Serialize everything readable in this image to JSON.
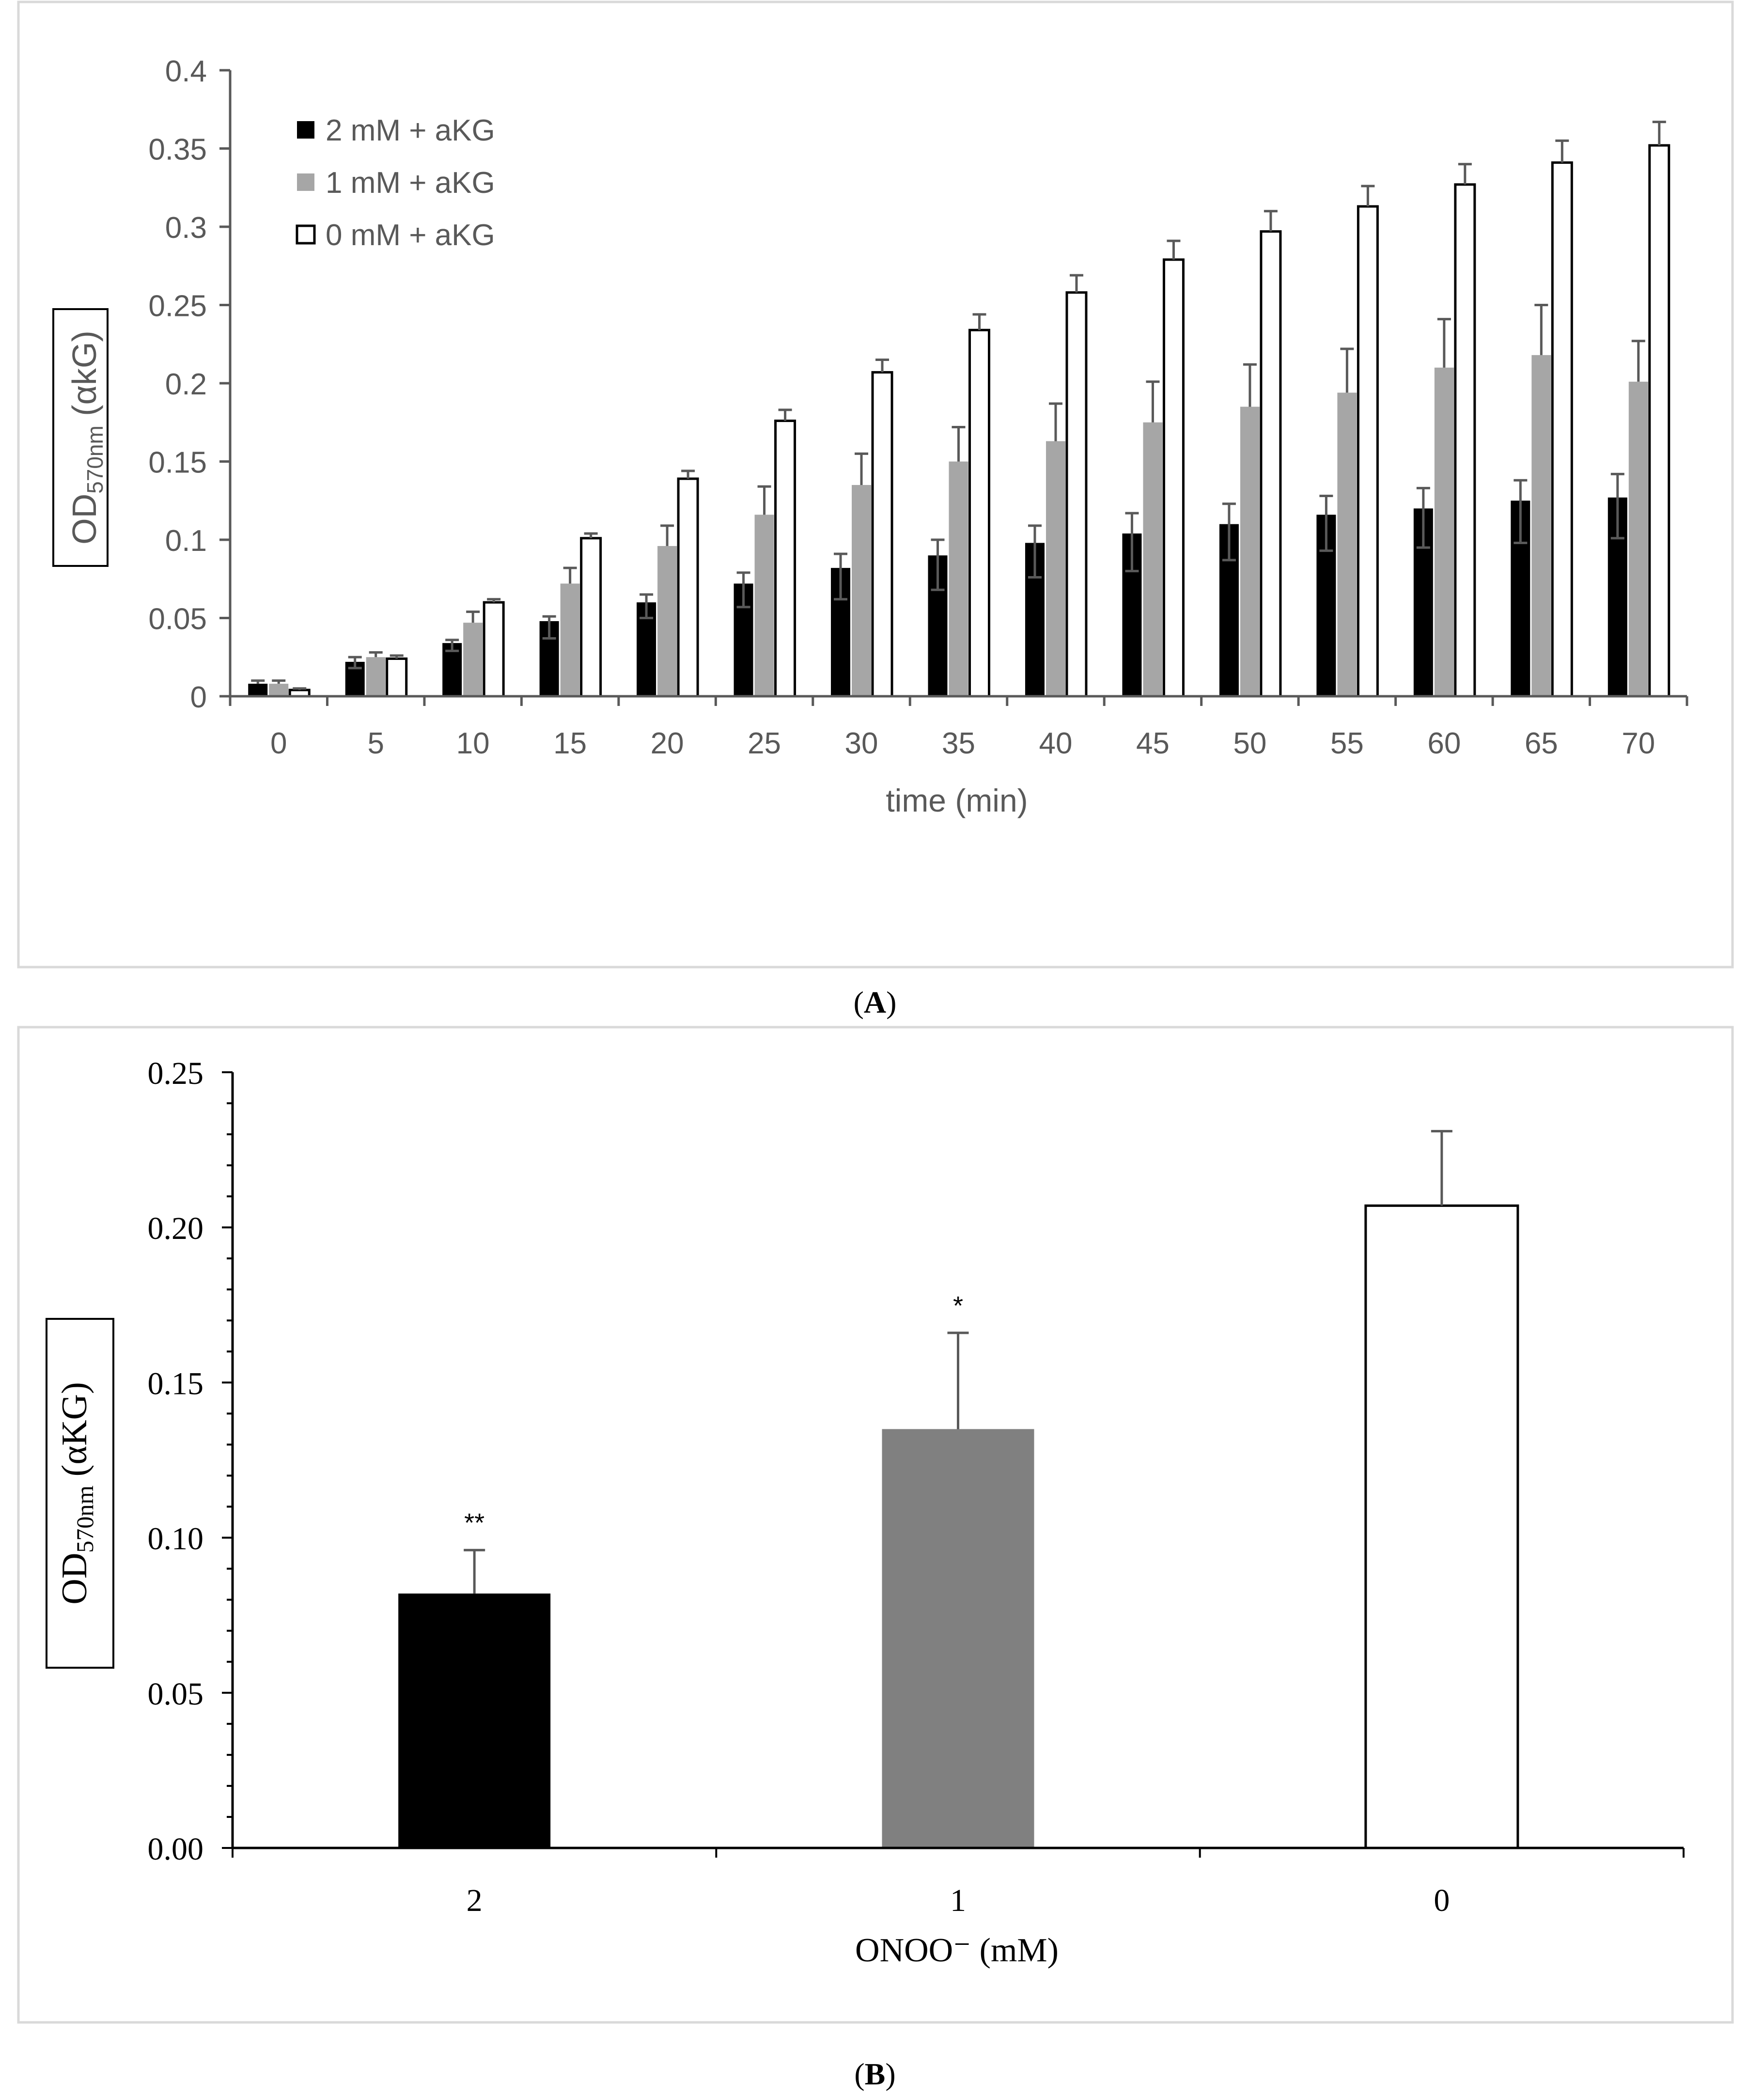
{
  "colors": {
    "series_black": "#000000",
    "series_gray_a": "#a6a6a6",
    "series_white": "#ffffff",
    "series_gray_b": "#808080",
    "error_bar": "#595959",
    "panel_border": "#d9d9d9",
    "axis_a": "#595959",
    "axis_b": "#000000"
  },
  "chart_data": [
    {
      "panel": "A",
      "caption": "A",
      "type": "bar",
      "xlabel": "time (min)",
      "ylabel": {
        "main": "OD",
        "sub": "570nm",
        "rest": " (αkG)"
      },
      "categories": [
        "0",
        "5",
        "10",
        "15",
        "20",
        "25",
        "30",
        "35",
        "40",
        "45",
        "50",
        "55",
        "60",
        "65",
        "70"
      ],
      "ylim": [
        0,
        0.4
      ],
      "yticks": [
        "0",
        "0.05",
        "0.1",
        "0.15",
        "0.2",
        "0.25",
        "0.3",
        "0.35",
        "0.4"
      ],
      "legend_position": "top-left",
      "grid": false,
      "series": [
        {
          "name": "2 mM + aKG",
          "values": [
            0.008,
            0.022,
            0.034,
            0.048,
            0.06,
            0.072,
            0.082,
            0.09,
            0.098,
            0.104,
            0.11,
            0.116,
            0.12,
            0.125,
            0.127
          ],
          "err_up": [
            0.002,
            0.003,
            0.002,
            0.003,
            0.005,
            0.007,
            0.009,
            0.01,
            0.011,
            0.013,
            0.013,
            0.012,
            0.013,
            0.013,
            0.015
          ],
          "err_down": [
            0.0,
            0.004,
            0.005,
            0.011,
            0.01,
            0.015,
            0.02,
            0.022,
            0.022,
            0.024,
            0.023,
            0.023,
            0.025,
            0.027,
            0.026
          ]
        },
        {
          "name": "1 mM + aKG",
          "values": [
            0.008,
            0.025,
            0.047,
            0.072,
            0.096,
            0.116,
            0.135,
            0.15,
            0.163,
            0.175,
            0.185,
            0.194,
            0.21,
            0.218,
            0.201
          ],
          "err_up": [
            0.002,
            0.003,
            0.007,
            0.01,
            0.013,
            0.018,
            0.02,
            0.022,
            0.024,
            0.026,
            0.027,
            0.028,
            0.031,
            0.032,
            0.026
          ],
          "err_down": [
            0,
            0,
            0,
            0,
            0,
            0,
            0,
            0,
            0,
            0,
            0,
            0,
            0,
            0,
            0
          ]
        },
        {
          "name": "0 mM + aKG",
          "values": [
            0.004,
            0.024,
            0.06,
            0.101,
            0.139,
            0.176,
            0.207,
            0.234,
            0.258,
            0.279,
            0.297,
            0.313,
            0.327,
            0.341,
            0.352
          ],
          "err_up": [
            0.001,
            0.002,
            0.002,
            0.003,
            0.005,
            0.007,
            0.008,
            0.01,
            0.011,
            0.012,
            0.013,
            0.013,
            0.013,
            0.014,
            0.015
          ],
          "err_down": [
            0,
            0,
            0,
            0,
            0,
            0,
            0,
            0,
            0,
            0,
            0,
            0,
            0,
            0,
            0
          ]
        }
      ]
    },
    {
      "panel": "B",
      "caption": "B",
      "type": "bar",
      "xlabel": "ONOO⁻ (mM)",
      "ylabel": {
        "main": "OD",
        "sub": "570nm",
        "rest": " (αKG)"
      },
      "categories": [
        "2",
        "1",
        "0"
      ],
      "values": [
        0.082,
        0.135,
        0.207
      ],
      "err_up": [
        0.014,
        0.031,
        0.024
      ],
      "annotations": [
        "**",
        "*",
        ""
      ],
      "ylim": [
        0,
        0.25
      ],
      "yticks": [
        "0.00",
        "0.05",
        "0.10",
        "0.15",
        "0.20",
        "0.25"
      ],
      "grid": false
    }
  ]
}
